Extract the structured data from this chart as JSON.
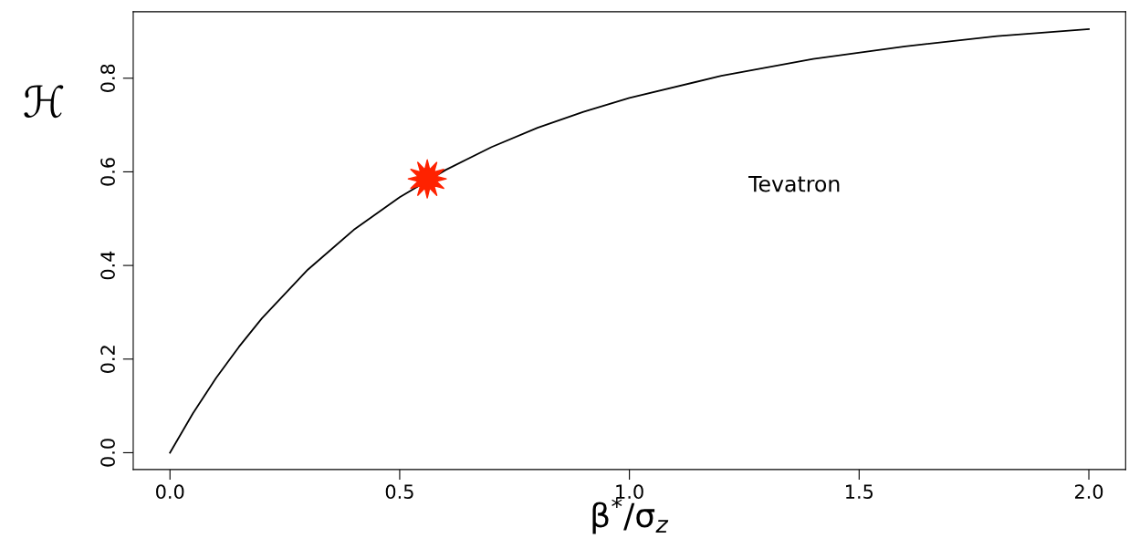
{
  "chart_data": {
    "type": "line",
    "xlabel": "β$^{*}$/σ$_{z}$",
    "ylabel": "ℋ",
    "annotations": [
      "Tevatron"
    ],
    "series": [
      {
        "color": "#000000",
        "marker": "none",
        "x": [
          0,
          0.05,
          0.1,
          0.15,
          0.2,
          0.3,
          0.4,
          0.5,
          0.6,
          0.7,
          0.8,
          0.9,
          1.0,
          1.2,
          1.4,
          1.6,
          1.8,
          2.0
        ],
        "values": [
          0,
          0.084,
          0.159,
          0.226,
          0.287,
          0.391,
          0.476,
          0.546,
          0.604,
          0.653,
          0.694,
          0.728,
          0.758,
          0.805,
          0.841,
          0.868,
          0.89,
          0.905
        ]
      },
      {
        "type": "scatter",
        "color": "#ff2200",
        "marker": "star",
        "x": [
          0.56
        ],
        "values": [
          0.585
        ]
      }
    ],
    "xlim": [
      -0.08,
      2.08
    ],
    "ylim": [
      -0.036,
      0.942
    ],
    "xticks": [
      {
        "value": 0,
        "label": "0.0"
      },
      0.5,
      {
        "value": 1,
        "label": "1.0"
      },
      1.5,
      {
        "value": 2,
        "label": "2.0"
      }
    ],
    "yticks": [
      {
        "value": 0,
        "label": "0.0"
      },
      0.2,
      0.4,
      0.6,
      0.8
    ],
    "grid": false,
    "legend": false
  }
}
